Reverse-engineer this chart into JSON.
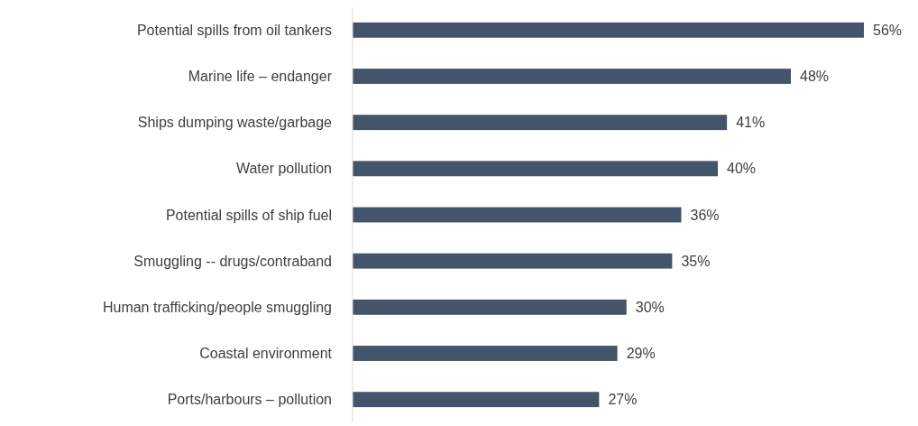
{
  "chart_data": {
    "type": "bar",
    "orientation": "horizontal",
    "categories": [
      "Potential spills from oil tankers",
      "Marine life – endanger",
      "Ships dumping waste/garbage",
      "Water pollution",
      "Potential spills of ship fuel",
      "Smuggling -- drugs/contraband",
      "Human trafficking/people smuggling",
      "Coastal environment",
      "Ports/harbours – pollution"
    ],
    "values": [
      56,
      48,
      41,
      40,
      36,
      35,
      30,
      29,
      27
    ],
    "value_labels": [
      "56%",
      "48%",
      "41%",
      "40%",
      "36%",
      "35%",
      "30%",
      "29%",
      "27%"
    ],
    "color": "#44546a"
  }
}
